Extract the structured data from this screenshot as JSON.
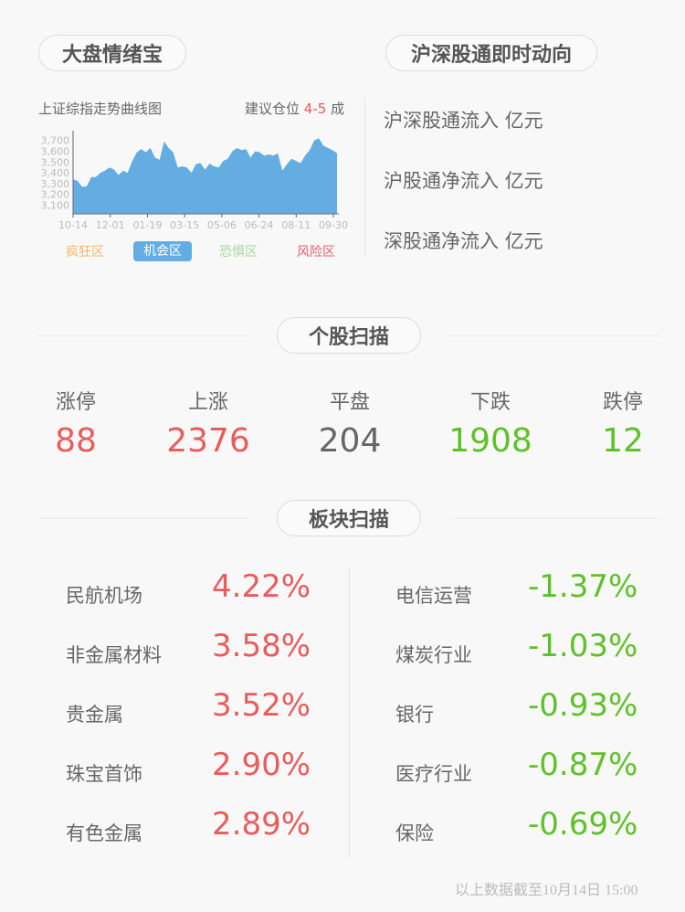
{
  "market": {
    "title": "大盘情绪宝",
    "chart_title": "上证综指走势曲线图",
    "advice_label": "建议仓位",
    "advice_value": "4-5",
    "advice_unit": "成",
    "zones": [
      {
        "label": "疯狂区",
        "color": "#f7b56b"
      },
      {
        "label": "机会区",
        "color": "#ffffff",
        "active": true
      },
      {
        "label": "恐惧区",
        "color": "#a8d89a"
      },
      {
        "label": "风险区",
        "color": "#e8606a"
      }
    ]
  },
  "chart_data": {
    "type": "area",
    "ylim": [
      3020,
      3790
    ],
    "yticks": [
      "3,700",
      "3,600",
      "3,500",
      "3,400",
      "3,300",
      "3,200",
      "3,100"
    ],
    "ytick_values": [
      3700,
      3600,
      3500,
      3400,
      3300,
      3200,
      3100
    ],
    "xticks": [
      "10-14",
      "12-01",
      "01-19",
      "03-15",
      "05-06",
      "06-24",
      "08-11",
      "09-30"
    ],
    "color": "#64ade3",
    "values": [
      3340,
      3325,
      3270,
      3275,
      3360,
      3360,
      3400,
      3420,
      3450,
      3430,
      3380,
      3420,
      3400,
      3510,
      3590,
      3620,
      3590,
      3630,
      3540,
      3520,
      3690,
      3630,
      3590,
      3450,
      3460,
      3450,
      3400,
      3480,
      3490,
      3430,
      3485,
      3460,
      3450,
      3510,
      3530,
      3600,
      3630,
      3610,
      3620,
      3540,
      3600,
      3590,
      3560,
      3570,
      3560,
      3580,
      3420,
      3480,
      3530,
      3510,
      3490,
      3560,
      3610,
      3700,
      3720,
      3650,
      3630,
      3610,
      3580
    ]
  },
  "flow": {
    "title": "沪深股通即时动向",
    "items": [
      "沪深股通流入 亿元",
      "沪股通净流入 亿元",
      "深股通净流入 亿元"
    ]
  },
  "stocks": {
    "title": "个股扫描",
    "items": [
      {
        "label": "涨停",
        "value": "88",
        "color": "red"
      },
      {
        "label": "上涨",
        "value": "2376",
        "color": "red"
      },
      {
        "label": "平盘",
        "value": "204",
        "color": "gray"
      },
      {
        "label": "下跌",
        "value": "1908",
        "color": "green"
      },
      {
        "label": "跌停",
        "value": "12",
        "color": "green"
      }
    ]
  },
  "sectors": {
    "title": "板块扫描",
    "up": [
      {
        "name": "民航机场",
        "pct": "4.22%"
      },
      {
        "name": "非金属材料",
        "pct": "3.58%"
      },
      {
        "name": "贵金属",
        "pct": "3.52%"
      },
      {
        "name": "珠宝首饰",
        "pct": "2.90%"
      },
      {
        "name": "有色金属",
        "pct": "2.89%"
      }
    ],
    "down": [
      {
        "name": "电信运营",
        "pct": "-1.37%"
      },
      {
        "name": "煤炭行业",
        "pct": "-1.03%"
      },
      {
        "name": "银行",
        "pct": "-0.93%"
      },
      {
        "name": "医疗行业",
        "pct": "-0.87%"
      },
      {
        "name": "保险",
        "pct": "-0.69%"
      }
    ]
  },
  "footer": "以上数据截至10月14日 15:00"
}
